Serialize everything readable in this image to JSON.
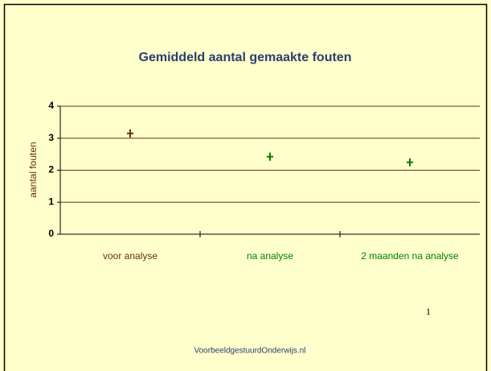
{
  "chart_data": {
    "type": "scatter",
    "title": "Gemiddeld aantal gemaakte fouten",
    "y_label": "aantal fouten",
    "categories": [
      "voor analyse",
      "na analyse",
      "2 maanden na analyse"
    ],
    "values": [
      3.15,
      2.42,
      2.25
    ],
    "colors": [
      "#663300",
      "#008000",
      "#008000"
    ],
    "grid_color": "#663300",
    "ylim": [
      0,
      4
    ],
    "yticks": [
      0,
      1,
      2,
      3,
      4
    ],
    "grid": true
  },
  "slide_number": "1",
  "footer": "VoorbeeldgestuurdOnderwijs.nl"
}
